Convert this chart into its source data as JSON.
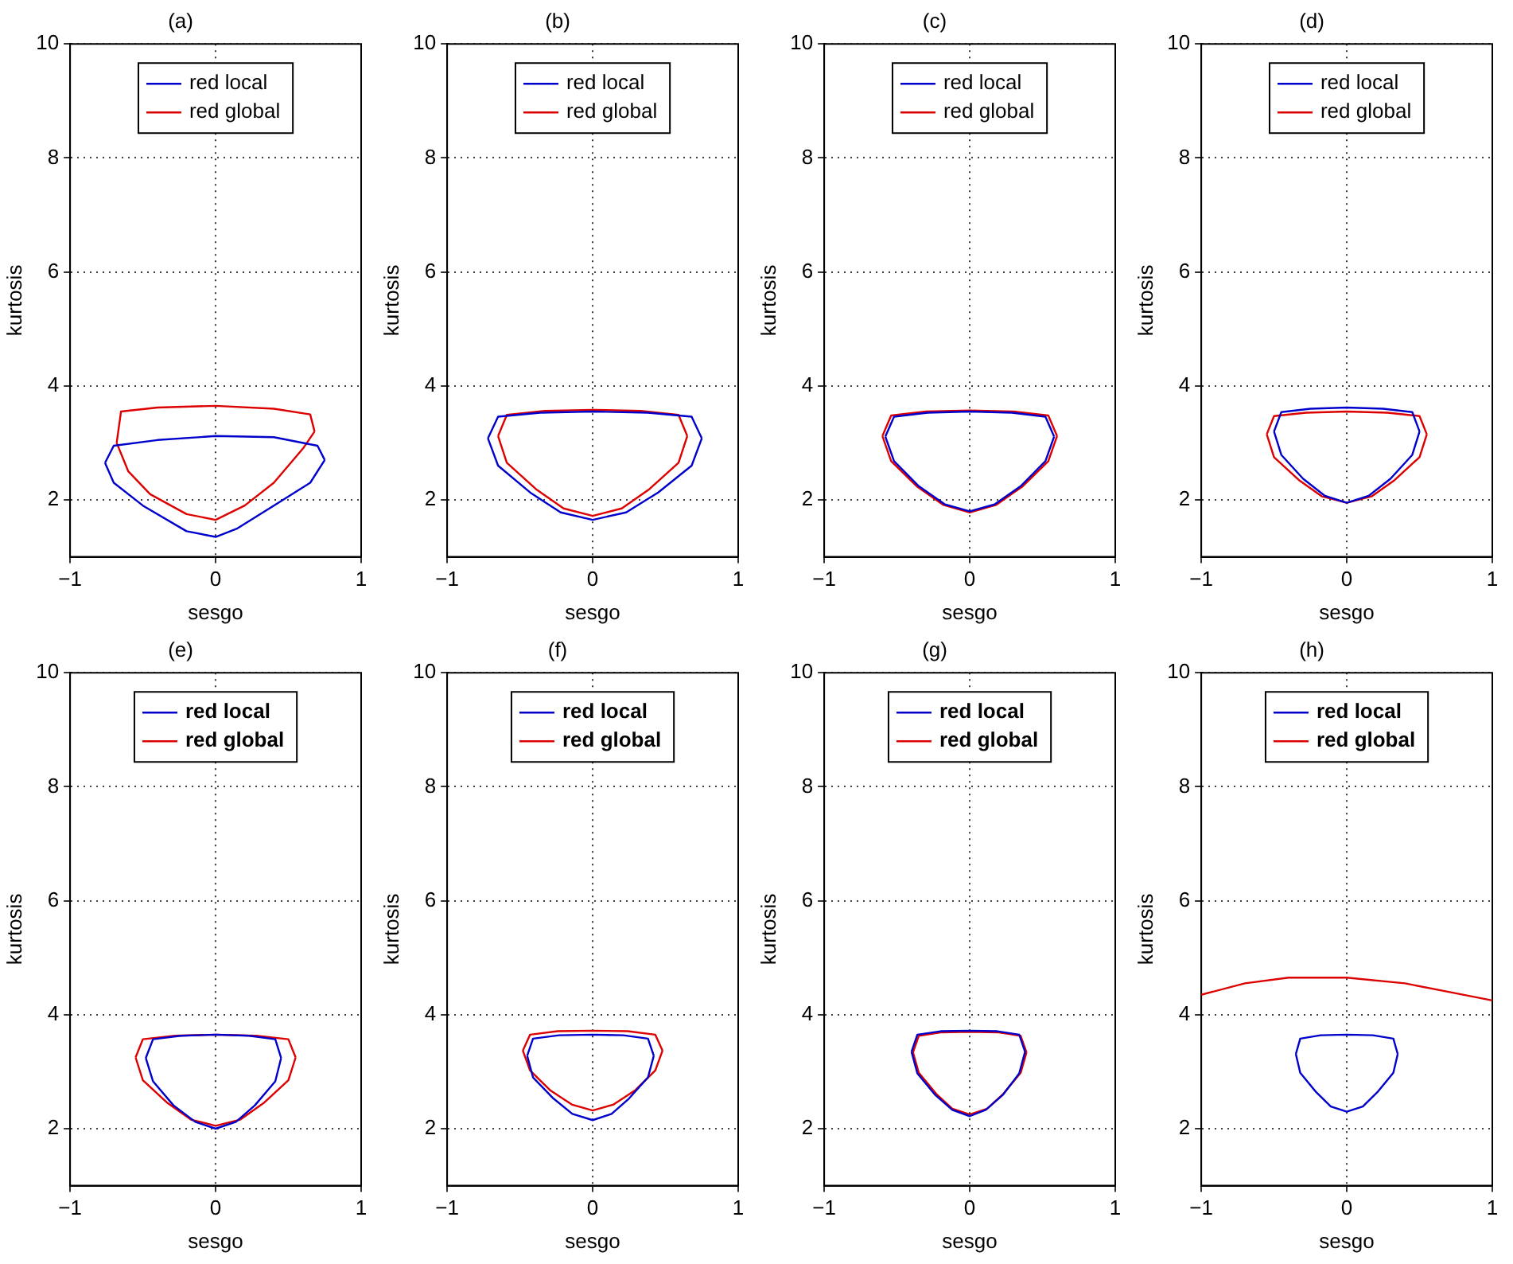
{
  "chart_data": [
    {
      "type": "line",
      "title": "(a)",
      "xlabel": "sesgo",
      "ylabel": "kurtosis",
      "xlim": [
        -1,
        1
      ],
      "xticks": [
        -1,
        0,
        1
      ],
      "ylim": [
        1,
        10
      ],
      "yticks": [
        2,
        4,
        6,
        8,
        10
      ],
      "grid": true,
      "legend": "top",
      "marker": "none",
      "series": [
        {
          "name": "red local",
          "color": "#0000cc",
          "x": [
            -0.76,
            -0.7,
            -0.4,
            0,
            0.4,
            0.7,
            0.75
          ],
          "values": [
            2.65,
            2.95,
            3.05,
            3.12,
            3.1,
            2.95,
            2.7
          ]
        },
        {
          "color": "#0000cc",
          "x": [
            -0.76,
            -0.7,
            -0.5,
            -0.2,
            0,
            0.15,
            0.4,
            0.65,
            0.75
          ],
          "values": [
            2.65,
            2.3,
            1.9,
            1.45,
            1.35,
            1.5,
            1.9,
            2.3,
            2.7
          ]
        },
        {
          "name": "red global",
          "color": "#dd0000",
          "x": [
            -0.68,
            -0.65,
            -0.4,
            0,
            0.4,
            0.65,
            0.68
          ],
          "values": [
            3.0,
            3.55,
            3.62,
            3.65,
            3.6,
            3.5,
            3.2
          ]
        },
        {
          "color": "#dd0000",
          "x": [
            -0.68,
            -0.6,
            -0.45,
            -0.2,
            0,
            0.2,
            0.4,
            0.6,
            0.68
          ],
          "values": [
            3.0,
            2.5,
            2.1,
            1.75,
            1.65,
            1.9,
            2.3,
            2.9,
            3.2
          ]
        }
      ]
    },
    {
      "type": "line",
      "title": "(b)",
      "xlabel": "sesgo",
      "ylabel": "kurtosis",
      "xlim": [
        -1,
        1
      ],
      "xticks": [
        -1,
        0,
        1
      ],
      "ylim": [
        1,
        10
      ],
      "yticks": [
        2,
        4,
        6,
        8,
        10
      ],
      "grid": true,
      "legend": "top",
      "marker": "none",
      "series": [
        {
          "name": "red local",
          "color": "#0000cc",
          "x": [
            -0.72,
            -0.65,
            -0.36,
            0,
            0.38,
            0.68,
            0.75
          ],
          "values": [
            3.08,
            3.46,
            3.53,
            3.55,
            3.53,
            3.46,
            3.08
          ]
        },
        {
          "color": "#0000cc",
          "x": [
            -0.72,
            -0.65,
            -0.43,
            -0.22,
            0,
            0.23,
            0.45,
            0.68,
            0.75
          ],
          "values": [
            3.08,
            2.6,
            2.13,
            1.78,
            1.65,
            1.78,
            2.13,
            2.6,
            3.08
          ]
        },
        {
          "name": "red global",
          "color": "#dd0000",
          "x": [
            -0.65,
            -0.59,
            -0.33,
            0,
            0.33,
            0.59,
            0.65
          ],
          "values": [
            3.12,
            3.49,
            3.56,
            3.58,
            3.56,
            3.49,
            3.12
          ]
        },
        {
          "color": "#dd0000",
          "x": [
            -0.65,
            -0.59,
            -0.39,
            -0.2,
            0,
            0.2,
            0.39,
            0.59,
            0.65
          ],
          "values": [
            3.12,
            2.65,
            2.19,
            1.85,
            1.72,
            1.85,
            2.19,
            2.65,
            3.12
          ]
        }
      ]
    },
    {
      "type": "line",
      "title": "(c)",
      "xlabel": "sesgo",
      "ylabel": "kurtosis",
      "xlim": [
        -1,
        1
      ],
      "xticks": [
        -1,
        0,
        1
      ],
      "ylim": [
        1,
        10
      ],
      "yticks": [
        2,
        4,
        6,
        8,
        10
      ],
      "grid": true,
      "legend": "top",
      "marker": "none",
      "series": [
        {
          "name": "red local",
          "color": "#0000cc",
          "x": [
            -0.58,
            -0.52,
            -0.29,
            0,
            0.29,
            0.52,
            0.58
          ],
          "values": [
            3.11,
            3.46,
            3.53,
            3.55,
            3.53,
            3.46,
            3.11
          ]
        },
        {
          "color": "#0000cc",
          "x": [
            -0.58,
            -0.52,
            -0.35,
            -0.17,
            0,
            0.17,
            0.35,
            0.52,
            0.58
          ],
          "values": [
            3.11,
            2.68,
            2.24,
            1.92,
            1.8,
            1.92,
            2.24,
            2.68,
            3.11
          ]
        },
        {
          "name": "red global",
          "color": "#dd0000",
          "x": [
            -0.6,
            -0.54,
            -0.3,
            0,
            0.3,
            0.54,
            0.6
          ],
          "values": [
            3.12,
            3.48,
            3.55,
            3.57,
            3.55,
            3.48,
            3.12
          ]
        },
        {
          "color": "#dd0000",
          "x": [
            -0.6,
            -0.54,
            -0.36,
            -0.18,
            0,
            0.18,
            0.36,
            0.54,
            0.6
          ],
          "values": [
            3.12,
            2.68,
            2.23,
            1.91,
            1.78,
            1.91,
            2.23,
            2.68,
            3.12
          ]
        }
      ]
    },
    {
      "type": "line",
      "title": "(d)",
      "xlabel": "sesgo",
      "ylabel": "kurtosis",
      "xlim": [
        -1,
        1
      ],
      "xticks": [
        -1,
        0,
        1
      ],
      "ylim": [
        1,
        10
      ],
      "yticks": [
        2,
        4,
        6,
        8,
        10
      ],
      "grid": true,
      "legend": "top",
      "marker": "none",
      "series": [
        {
          "name": "red local",
          "color": "#0000cc",
          "x": [
            -0.5,
            -0.45,
            -0.25,
            0,
            0.25,
            0.45,
            0.5
          ],
          "values": [
            3.2,
            3.54,
            3.6,
            3.62,
            3.6,
            3.54,
            3.2
          ]
        },
        {
          "color": "#0000cc",
          "x": [
            -0.5,
            -0.45,
            -0.3,
            -0.15,
            0,
            0.15,
            0.3,
            0.45,
            0.5
          ],
          "values": [
            3.2,
            2.79,
            2.37,
            2.07,
            1.95,
            2.07,
            2.37,
            2.79,
            3.2
          ]
        },
        {
          "name": "red global",
          "color": "#dd0000",
          "x": [
            -0.55,
            -0.5,
            -0.28,
            0,
            0.28,
            0.5,
            0.55
          ],
          "values": [
            3.15,
            3.47,
            3.53,
            3.55,
            3.53,
            3.47,
            3.15
          ]
        },
        {
          "color": "#dd0000",
          "x": [
            -0.55,
            -0.5,
            -0.33,
            -0.17,
            0,
            0.17,
            0.33,
            0.5,
            0.55
          ],
          "values": [
            3.15,
            2.75,
            2.35,
            2.06,
            1.95,
            2.06,
            2.35,
            2.75,
            3.15
          ]
        }
      ]
    },
    {
      "type": "line",
      "title": "(e)",
      "xlabel": "sesgo",
      "ylabel": "kurtosis",
      "xlim": [
        -1,
        1
      ],
      "xticks": [
        -1,
        0,
        1
      ],
      "ylim": [
        1,
        10
      ],
      "yticks": [
        2,
        4,
        6,
        8,
        10
      ],
      "grid": true,
      "legend": "top",
      "marker": "none",
      "series": [
        {
          "name": "red local",
          "color": "#0000cc",
          "x": [
            -0.48,
            -0.43,
            -0.24,
            0,
            0.23,
            0.41,
            0.45
          ],
          "values": [
            3.24,
            3.57,
            3.63,
            3.65,
            3.63,
            3.57,
            3.24
          ]
        },
        {
          "color": "#0000cc",
          "x": [
            -0.48,
            -0.43,
            -0.29,
            -0.14,
            0,
            0.14,
            0.27,
            0.41,
            0.45
          ],
          "values": [
            3.24,
            2.83,
            2.41,
            2.12,
            2.0,
            2.12,
            2.41,
            2.83,
            3.24
          ]
        },
        {
          "name": "red global",
          "color": "#dd0000",
          "x": [
            -0.55,
            -0.5,
            -0.28,
            0,
            0.28,
            0.5,
            0.55
          ],
          "values": [
            3.25,
            3.57,
            3.63,
            3.65,
            3.63,
            3.57,
            3.25
          ]
        },
        {
          "color": "#dd0000",
          "x": [
            -0.55,
            -0.5,
            -0.33,
            -0.17,
            0,
            0.17,
            0.33,
            0.5,
            0.55
          ],
          "values": [
            3.25,
            2.85,
            2.45,
            2.16,
            2.05,
            2.16,
            2.45,
            2.85,
            3.25
          ]
        }
      ]
    },
    {
      "type": "line",
      "title": "(f)",
      "xlabel": "sesgo",
      "ylabel": "kurtosis",
      "xlim": [
        -1,
        1
      ],
      "xticks": [
        -1,
        0,
        1
      ],
      "ylim": [
        1,
        10
      ],
      "yticks": [
        2,
        4,
        6,
        8,
        10
      ],
      "grid": true,
      "legend": "top",
      "marker": "none",
      "series": [
        {
          "name": "red local",
          "color": "#0000cc",
          "x": [
            -0.45,
            -0.41,
            -0.23,
            0,
            0.21,
            0.38,
            0.42
          ],
          "values": [
            3.28,
            3.58,
            3.64,
            3.65,
            3.64,
            3.58,
            3.28
          ]
        },
        {
          "color": "#0000cc",
          "x": [
            -0.45,
            -0.41,
            -0.27,
            -0.14,
            0,
            0.13,
            0.25,
            0.38,
            0.42
          ],
          "values": [
            3.28,
            2.9,
            2.53,
            2.26,
            2.15,
            2.26,
            2.53,
            2.9,
            3.28
          ]
        },
        {
          "name": "red global",
          "color": "#dd0000",
          "x": [
            -0.48,
            -0.43,
            -0.24,
            0,
            0.24,
            0.43,
            0.48
          ],
          "values": [
            3.37,
            3.65,
            3.71,
            3.72,
            3.71,
            3.65,
            3.37
          ]
        },
        {
          "color": "#dd0000",
          "x": [
            -0.48,
            -0.43,
            -0.29,
            -0.14,
            0,
            0.14,
            0.29,
            0.43,
            0.48
          ],
          "values": [
            3.37,
            3.02,
            2.67,
            2.42,
            2.32,
            2.42,
            2.67,
            3.02,
            3.37
          ]
        }
      ]
    },
    {
      "type": "line",
      "title": "(g)",
      "xlabel": "sesgo",
      "ylabel": "kurtosis",
      "xlim": [
        -1,
        1
      ],
      "xticks": [
        -1,
        0,
        1
      ],
      "ylim": [
        1,
        10
      ],
      "yticks": [
        2,
        4,
        6,
        8,
        10
      ],
      "grid": true,
      "legend": "top",
      "marker": "none",
      "series": [
        {
          "name": "red local",
          "color": "#0000cc",
          "x": [
            -0.4,
            -0.36,
            -0.2,
            0,
            0.19,
            0.34,
            0.38
          ],
          "values": [
            3.35,
            3.65,
            3.71,
            3.72,
            3.71,
            3.65,
            3.35
          ]
        },
        {
          "color": "#0000cc",
          "x": [
            -0.4,
            -0.36,
            -0.24,
            -0.12,
            0,
            0.11,
            0.23,
            0.34,
            0.38
          ],
          "values": [
            3.35,
            2.97,
            2.6,
            2.33,
            2.22,
            2.33,
            2.6,
            2.97,
            3.35
          ]
        },
        {
          "name": "red global",
          "color": "#dd0000",
          "x": [
            -0.39,
            -0.35,
            -0.2,
            0,
            0.2,
            0.35,
            0.39
          ],
          "values": [
            3.34,
            3.63,
            3.69,
            3.7,
            3.69,
            3.63,
            3.34
          ]
        },
        {
          "color": "#dd0000",
          "x": [
            -0.39,
            -0.35,
            -0.23,
            -0.12,
            0,
            0.12,
            0.23,
            0.35,
            0.39
          ],
          "values": [
            3.34,
            2.98,
            2.61,
            2.35,
            2.25,
            2.35,
            2.61,
            2.98,
            3.34
          ]
        }
      ]
    },
    {
      "type": "line",
      "title": "(h)",
      "xlabel": "sesgo",
      "ylabel": "kurtosis",
      "xlim": [
        -1,
        1
      ],
      "xticks": [
        -1,
        0,
        1
      ],
      "ylim": [
        1,
        10
      ],
      "yticks": [
        2,
        4,
        6,
        8,
        10
      ],
      "grid": true,
      "legend": "top",
      "marker": "none",
      "series": [
        {
          "name": "red local",
          "color": "#0000cc",
          "x": [
            -0.35,
            -0.32,
            -0.18,
            0,
            0.18,
            0.32,
            0.35
          ],
          "values": [
            3.31,
            3.58,
            3.64,
            3.65,
            3.64,
            3.58,
            3.31
          ]
        },
        {
          "color": "#0000cc",
          "x": [
            -0.35,
            -0.32,
            -0.21,
            -0.11,
            0,
            0.11,
            0.21,
            0.32,
            0.35
          ],
          "values": [
            3.31,
            2.98,
            2.64,
            2.39,
            2.3,
            2.39,
            2.64,
            2.98,
            3.31
          ]
        },
        {
          "name": "red global",
          "color": "#dd0000",
          "x": [
            -1,
            -0.7,
            -0.4,
            0,
            0.4,
            0.7,
            1
          ],
          "values": [
            4.35,
            4.55,
            4.65,
            4.65,
            4.55,
            4.4,
            4.25
          ]
        }
      ]
    }
  ]
}
